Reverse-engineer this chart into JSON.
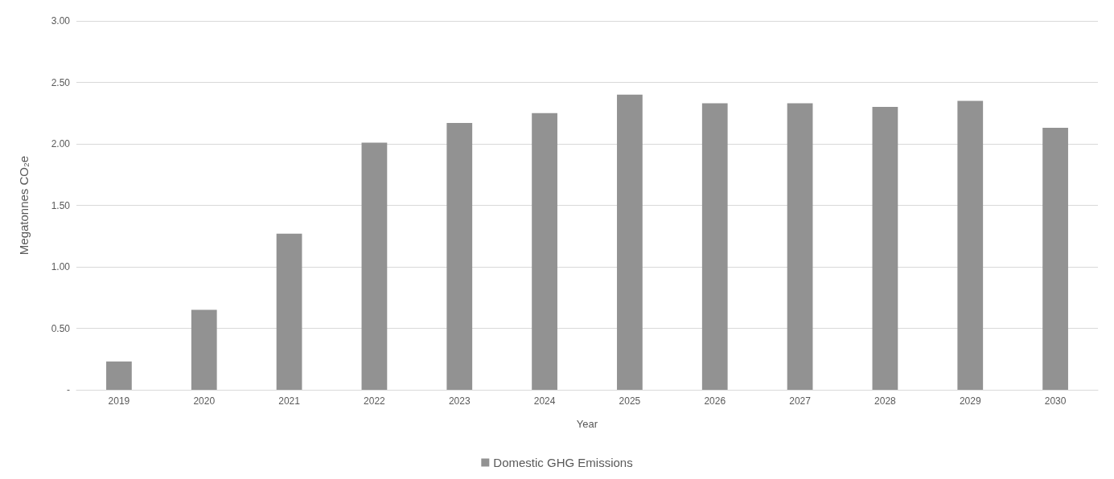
{
  "chart_data": {
    "type": "bar",
    "xlabel": "Year",
    "ylabel": "Megatonnes CO₂e",
    "categories": [
      "2019",
      "2020",
      "2021",
      "2022",
      "2023",
      "2024",
      "2025",
      "2026",
      "2027",
      "2028",
      "2029",
      "2030"
    ],
    "series": [
      {
        "name": "Domestic GHG Emissions",
        "color": "#929292",
        "values": [
          0.23,
          0.65,
          1.27,
          2.01,
          2.17,
          2.25,
          2.4,
          2.33,
          2.33,
          2.3,
          2.35,
          2.13
        ]
      }
    ],
    "ylim": [
      0,
      3
    ],
    "yticks": [
      {
        "value": 0,
        "label": "-"
      },
      {
        "value": 0.5,
        "label": "0.50"
      },
      {
        "value": 1,
        "label": "1.00"
      },
      {
        "value": 1.5,
        "label": "1.50"
      },
      {
        "value": 2,
        "label": "2.00"
      },
      {
        "value": 2.5,
        "label": "2.50"
      },
      {
        "value": 3,
        "label": "3.00"
      }
    ],
    "grid": "y",
    "legend": "bottom"
  }
}
